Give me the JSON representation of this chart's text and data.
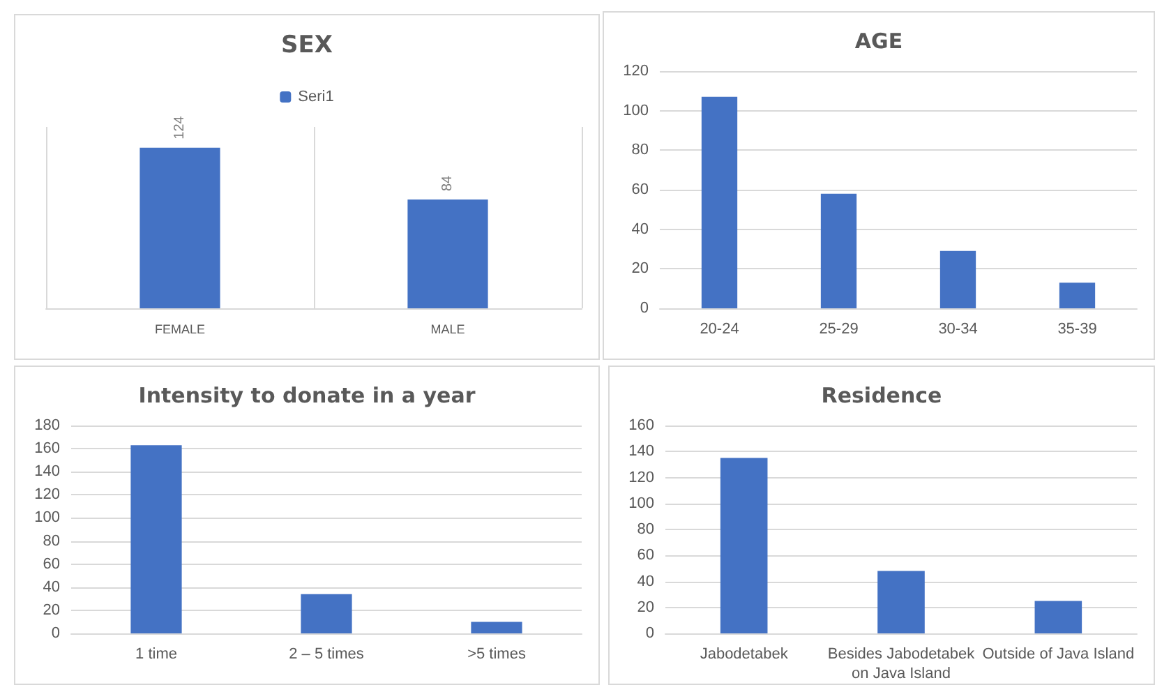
{
  "chart_data": [
    {
      "type": "bar",
      "title": "SEX",
      "categories": [
        "FEMALE",
        "MALE"
      ],
      "series": [
        {
          "name": "Seri1",
          "color": "#4472c4",
          "values": [
            124,
            84
          ]
        }
      ],
      "data_labels": true,
      "legend": "top",
      "grid": "x",
      "tick_labels": "x"
    },
    {
      "type": "bar",
      "title": "AGE",
      "categories": [
        "20-24",
        "25-29",
        "30-34",
        "35-39"
      ],
      "values": [
        107,
        58,
        29,
        13
      ],
      "color": "#4472c4",
      "ylim": [
        0,
        120
      ],
      "yticks": [
        0,
        20,
        40,
        60,
        80,
        100,
        120
      ],
      "grid": "y"
    },
    {
      "type": "bar",
      "title": "Intensity to donate in a year",
      "categories": [
        "1 time",
        "2 – 5 times",
        ">5 times"
      ],
      "values": [
        163,
        34,
        10
      ],
      "color": "#4472c4",
      "ylim": [
        0,
        180
      ],
      "yticks": [
        0,
        20,
        40,
        60,
        80,
        100,
        120,
        140,
        160,
        180
      ],
      "grid": "y"
    },
    {
      "type": "bar",
      "title": "Residence",
      "categories": [
        "Jabodetabek",
        "Besides Jabodetabek\non Java Island",
        "Outside of Java Island"
      ],
      "values": [
        135,
        48,
        25
      ],
      "color": "#4472c4",
      "ylim": [
        0,
        160
      ],
      "yticks": [
        0,
        20,
        40,
        60,
        80,
        100,
        120,
        140,
        160
      ],
      "grid": "y"
    }
  ]
}
